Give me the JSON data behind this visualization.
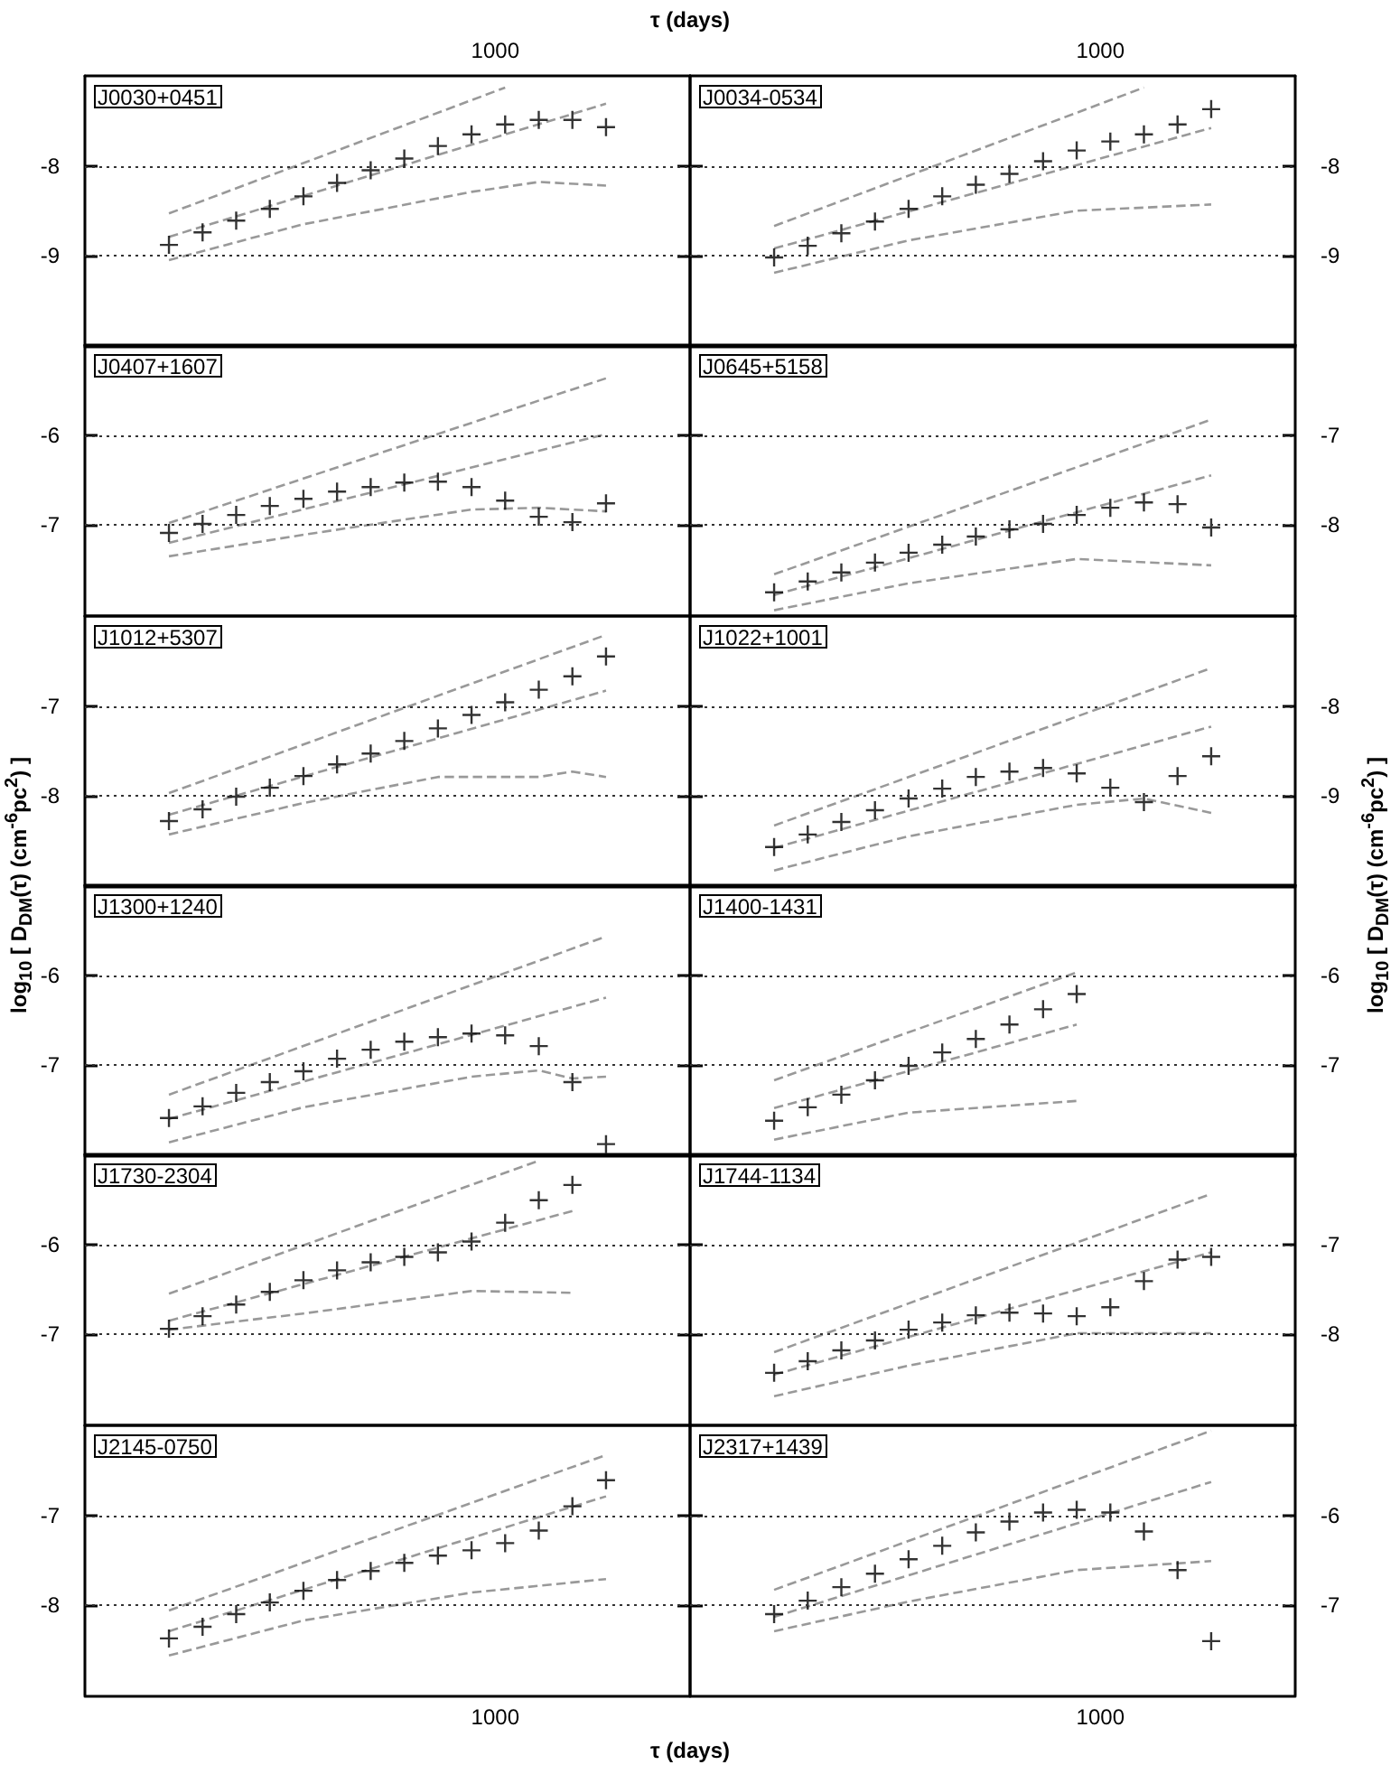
{
  "chart_data": [
    {
      "type": "scatter",
      "title": "J0030+0451",
      "x2label": "τ (days)",
      "ylabel": "log$_{10}$ [ D$_{DM}$(τ) (cm$^{-6}$pc$^{2}$) ]",
      "annotations": [
        "1000"
      ],
      "categories": [
        null,
        null,
        null,
        null,
        null,
        null,
        null,
        null,
        null,
        null,
        null,
        null,
        null,
        null,
        null,
        null,
        null,
        null
      ],
      "ylim": [
        -10,
        -7
      ],
      "yticks": [
        -9,
        -8
      ],
      "grid": "y",
      "tick_labels": "y",
      "series": [
        {
          "color": "#000000",
          "marker": "cross",
          "values": [
            null,
            null,
            -8.88,
            -8.74,
            -8.61,
            -8.48,
            -8.34,
            -8.19,
            -8.05,
            -7.92,
            -7.78,
            -7.65,
            -7.54,
            -7.49,
            -7.49,
            -7.57,
            null,
            null
          ]
        },
        {
          "type": "line",
          "color": "#999999",
          "line_style": "dashed",
          "marker": "none",
          "values": [
            null,
            null,
            -8.53,
            null,
            null,
            null,
            null,
            null,
            null,
            null,
            null,
            null,
            -7.13,
            null,
            null,
            null,
            null,
            null
          ]
        },
        {
          "type": "line",
          "color": "#999999",
          "line_style": "dashed",
          "marker": "none",
          "values": [
            null,
            null,
            -8.79,
            null,
            null,
            null,
            null,
            null,
            null,
            null,
            null,
            null,
            null,
            null,
            null,
            -7.31,
            null,
            null
          ]
        },
        {
          "type": "line",
          "color": "#999999",
          "line_style": "dashed",
          "marker": "none",
          "values": [
            null,
            null,
            -9.05,
            null,
            null,
            null,
            -8.65,
            null,
            null,
            null,
            null,
            -8.29,
            null,
            -8.18,
            null,
            -8.22,
            null,
            null
          ]
        }
      ]
    },
    {
      "type": "scatter",
      "title": "J0034-0534",
      "y2label": "log$_{10}$ [ D$_{DM}$(τ) (cm$^{-6}$pc$^{2}$) ]",
      "annotations": [
        "1000"
      ],
      "categories": [
        null,
        null,
        null,
        null,
        null,
        null,
        null,
        null,
        null,
        null,
        null,
        null,
        null,
        null,
        null,
        null,
        null,
        null
      ],
      "y2lim": [
        -10,
        -7
      ],
      "y2ticks": [
        -9,
        -8
      ],
      "grid": "y",
      "tick_labels": "y",
      "series": [
        {
          "axis": "y2",
          "color": "#000000",
          "marker": "cross",
          "values": [
            null,
            null,
            -9.02,
            -8.89,
            -8.75,
            -8.62,
            -8.48,
            -8.34,
            -8.21,
            -8.09,
            -7.95,
            -7.83,
            -7.73,
            -7.65,
            -7.54,
            -7.37,
            null,
            null
          ]
        },
        {
          "type": "line",
          "axis": "y2",
          "color": "#999999",
          "line_style": "dashed",
          "marker": "none",
          "values": [
            null,
            null,
            -8.67,
            null,
            null,
            null,
            null,
            null,
            null,
            null,
            null,
            null,
            null,
            -7.13,
            null,
            null,
            null,
            null
          ]
        },
        {
          "type": "line",
          "axis": "y2",
          "color": "#999999",
          "line_style": "dashed",
          "marker": "none",
          "values": [
            null,
            null,
            -8.92,
            null,
            null,
            null,
            null,
            null,
            null,
            null,
            null,
            null,
            null,
            null,
            null,
            -7.58,
            null,
            null
          ]
        },
        {
          "type": "line",
          "axis": "y2",
          "color": "#999999",
          "line_style": "dashed",
          "marker": "none",
          "values": [
            null,
            null,
            -9.19,
            null,
            null,
            null,
            -8.83,
            null,
            null,
            null,
            null,
            -8.5,
            null,
            null,
            null,
            -8.43,
            null,
            null
          ]
        }
      ]
    },
    {
      "type": "scatter",
      "title": "J0407+1607",
      "categories": [
        null,
        null,
        null,
        null,
        null,
        null,
        null,
        null,
        null,
        null,
        null,
        null,
        null,
        null,
        null,
        null,
        null,
        null
      ],
      "ylim": [
        -8,
        -5
      ],
      "yticks": [
        -7,
        -6
      ],
      "grid": "y",
      "tick_labels": "y",
      "series": [
        {
          "color": "#000000",
          "marker": "cross",
          "values": [
            null,
            null,
            -7.09,
            -6.99,
            -6.89,
            -6.79,
            -6.71,
            -6.63,
            -6.58,
            -6.53,
            -6.52,
            -6.58,
            -6.73,
            -6.91,
            -6.97,
            -6.76,
            null,
            null
          ]
        },
        {
          "type": "line",
          "color": "#999999",
          "line_style": "dashed",
          "marker": "none",
          "values": [
            null,
            null,
            -6.98,
            null,
            null,
            null,
            null,
            null,
            null,
            null,
            null,
            null,
            null,
            null,
            null,
            -5.37,
            null,
            null
          ]
        },
        {
          "type": "line",
          "color": "#999999",
          "line_style": "dashed",
          "marker": "none",
          "values": [
            null,
            null,
            -7.2,
            null,
            null,
            null,
            null,
            null,
            null,
            null,
            null,
            null,
            null,
            null,
            null,
            -5.99,
            null,
            null
          ]
        },
        {
          "type": "line",
          "color": "#999999",
          "line_style": "dashed",
          "marker": "none",
          "values": [
            null,
            null,
            -7.35,
            null,
            null,
            null,
            -7.11,
            null,
            null,
            null,
            null,
            -6.83,
            null,
            -6.81,
            null,
            -6.85,
            null,
            null
          ]
        }
      ]
    },
    {
      "type": "scatter",
      "title": "J0645+5158",
      "categories": [
        null,
        null,
        null,
        null,
        null,
        null,
        null,
        null,
        null,
        null,
        null,
        null,
        null,
        null,
        null,
        null,
        null,
        null
      ],
      "y2lim": [
        -9,
        -6
      ],
      "y2ticks": [
        -8,
        -7
      ],
      "grid": "y",
      "tick_labels": "y",
      "series": [
        {
          "axis": "y2",
          "color": "#000000",
          "marker": "cross",
          "values": [
            null,
            null,
            -8.75,
            -8.63,
            -8.53,
            -8.42,
            -8.31,
            -8.22,
            -8.13,
            -8.05,
            -7.99,
            -7.89,
            -7.81,
            -7.75,
            -7.77,
            -8.03,
            null,
            null
          ]
        },
        {
          "type": "line",
          "axis": "y2",
          "color": "#999999",
          "line_style": "dashed",
          "marker": "none",
          "values": [
            null,
            null,
            -8.55,
            null,
            null,
            null,
            null,
            null,
            null,
            null,
            null,
            null,
            null,
            null,
            null,
            -6.83,
            null,
            null
          ]
        },
        {
          "type": "line",
          "axis": "y2",
          "color": "#999999",
          "line_style": "dashed",
          "marker": "none",
          "values": [
            null,
            null,
            -8.78,
            null,
            null,
            null,
            null,
            null,
            null,
            null,
            null,
            null,
            null,
            null,
            null,
            -7.45,
            null,
            null
          ]
        },
        {
          "type": "line",
          "axis": "y2",
          "color": "#999999",
          "line_style": "dashed",
          "marker": "none",
          "values": [
            null,
            null,
            -8.95,
            null,
            null,
            null,
            -8.65,
            null,
            null,
            null,
            null,
            -8.38,
            null,
            null,
            null,
            -8.45,
            null,
            null
          ]
        }
      ]
    },
    {
      "type": "scatter",
      "title": "J1012+5307",
      "categories": [
        null,
        null,
        null,
        null,
        null,
        null,
        null,
        null,
        null,
        null,
        null,
        null,
        null,
        null,
        null,
        null,
        null,
        null
      ],
      "ylim": [
        -9,
        -6
      ],
      "yticks": [
        -8,
        -7
      ],
      "grid": "y",
      "tick_labels": "y",
      "series": [
        {
          "color": "#000000",
          "marker": "cross",
          "values": [
            null,
            null,
            -8.28,
            -8.15,
            -8.01,
            -7.91,
            -7.78,
            -7.65,
            -7.53,
            -7.39,
            -7.25,
            -7.1,
            -6.96,
            -6.82,
            -6.67,
            -6.45,
            null,
            null
          ]
        },
        {
          "type": "line",
          "color": "#999999",
          "line_style": "dashed",
          "marker": "none",
          "values": [
            null,
            null,
            -7.97,
            null,
            null,
            null,
            null,
            null,
            null,
            null,
            null,
            null,
            null,
            null,
            null,
            -6.21,
            null,
            null
          ]
        },
        {
          "type": "line",
          "color": "#999999",
          "line_style": "dashed",
          "marker": "none",
          "values": [
            null,
            null,
            -8.21,
            null,
            null,
            null,
            null,
            null,
            null,
            null,
            null,
            null,
            null,
            null,
            null,
            -6.83,
            null,
            null
          ]
        },
        {
          "type": "line",
          "color": "#999999",
          "line_style": "dashed",
          "marker": "none",
          "values": [
            null,
            null,
            -8.43,
            null,
            null,
            null,
            -8.08,
            null,
            null,
            null,
            -7.79,
            null,
            null,
            -7.79,
            -7.73,
            -7.79,
            null,
            null
          ]
        }
      ]
    },
    {
      "type": "scatter",
      "title": "J1022+1001",
      "categories": [
        null,
        null,
        null,
        null,
        null,
        null,
        null,
        null,
        null,
        null,
        null,
        null,
        null,
        null,
        null,
        null,
        null,
        null
      ],
      "y2lim": [
        -10,
        -7
      ],
      "y2ticks": [
        -9,
        -8
      ],
      "grid": "y",
      "tick_labels": "y",
      "series": [
        {
          "axis": "y2",
          "color": "#000000",
          "marker": "cross",
          "values": [
            null,
            null,
            -9.57,
            -9.43,
            -9.29,
            -9.16,
            -9.03,
            -8.92,
            -8.79,
            -8.73,
            -8.69,
            -8.75,
            -8.91,
            -9.07,
            -8.78,
            -8.56,
            null,
            null
          ]
        },
        {
          "type": "line",
          "axis": "y2",
          "color": "#999999",
          "line_style": "dashed",
          "marker": "none",
          "values": [
            null,
            null,
            -9.33,
            null,
            null,
            null,
            null,
            null,
            null,
            null,
            null,
            null,
            null,
            null,
            null,
            -7.58,
            null,
            null
          ]
        },
        {
          "type": "line",
          "axis": "y2",
          "color": "#999999",
          "line_style": "dashed",
          "marker": "none",
          "values": [
            null,
            null,
            -9.58,
            null,
            null,
            null,
            null,
            null,
            null,
            null,
            null,
            null,
            null,
            null,
            null,
            -8.23,
            null,
            null
          ]
        },
        {
          "type": "line",
          "axis": "y2",
          "color": "#999999",
          "line_style": "dashed",
          "marker": "none",
          "values": [
            null,
            null,
            -9.83,
            null,
            null,
            null,
            -9.45,
            null,
            null,
            null,
            null,
            -9.1,
            null,
            -9.03,
            null,
            -9.19,
            null,
            null
          ]
        }
      ]
    },
    {
      "type": "scatter",
      "title": "J1300+1240",
      "categories": [
        null,
        null,
        null,
        null,
        null,
        null,
        null,
        null,
        null,
        null,
        null,
        null,
        null,
        null,
        null,
        null,
        null,
        null
      ],
      "ylim": [
        -8,
        -5
      ],
      "yticks": [
        -7,
        -6
      ],
      "grid": "y",
      "tick_labels": "y",
      "series": [
        {
          "color": "#000000",
          "marker": "cross",
          "values": [
            null,
            null,
            -7.59,
            -7.46,
            -7.31,
            -7.19,
            -7.07,
            -6.93,
            -6.83,
            -6.74,
            -6.69,
            -6.65,
            -6.67,
            -6.79,
            -7.19,
            -7.88,
            null,
            null
          ]
        },
        {
          "type": "line",
          "color": "#999999",
          "line_style": "dashed",
          "marker": "none",
          "values": [
            null,
            null,
            -7.33,
            null,
            null,
            null,
            null,
            null,
            null,
            null,
            null,
            null,
            null,
            null,
            null,
            -5.57,
            null,
            null
          ]
        },
        {
          "type": "line",
          "color": "#999999",
          "line_style": "dashed",
          "marker": "none",
          "values": [
            null,
            null,
            -7.6,
            null,
            null,
            null,
            null,
            null,
            null,
            null,
            null,
            null,
            null,
            null,
            null,
            -6.25,
            null,
            null
          ]
        },
        {
          "type": "line",
          "color": "#999999",
          "line_style": "dashed",
          "marker": "none",
          "values": [
            null,
            null,
            -7.86,
            null,
            null,
            null,
            -7.47,
            null,
            null,
            null,
            null,
            -7.13,
            null,
            -7.06,
            -7.15,
            -7.13,
            null,
            null
          ]
        }
      ]
    },
    {
      "type": "scatter",
      "title": "J1400-1431",
      "categories": [
        null,
        null,
        null,
        null,
        null,
        null,
        null,
        null,
        null,
        null,
        null,
        null,
        null,
        null,
        null,
        null,
        null,
        null
      ],
      "y2lim": [
        -8,
        -5
      ],
      "y2ticks": [
        -7,
        -6
      ],
      "grid": "y",
      "tick_labels": "y",
      "series": [
        {
          "axis": "y2",
          "color": "#000000",
          "marker": "cross",
          "values": [
            null,
            null,
            -7.62,
            -7.47,
            -7.33,
            -7.17,
            -7.01,
            -6.86,
            -6.71,
            -6.55,
            -6.38,
            -6.21,
            null,
            null,
            null,
            null,
            null,
            null
          ]
        },
        {
          "type": "line",
          "axis": "y2",
          "color": "#999999",
          "line_style": "dashed",
          "marker": "none",
          "values": [
            null,
            null,
            -7.17,
            null,
            null,
            null,
            null,
            null,
            null,
            null,
            null,
            -5.97,
            null,
            null,
            null,
            null,
            null,
            null
          ]
        },
        {
          "type": "line",
          "axis": "y2",
          "color": "#999999",
          "line_style": "dashed",
          "marker": "none",
          "values": [
            null,
            null,
            -7.48,
            null,
            null,
            null,
            null,
            null,
            null,
            null,
            null,
            -6.55,
            null,
            null,
            null,
            null,
            null,
            null
          ]
        },
        {
          "type": "line",
          "axis": "y2",
          "color": "#999999",
          "line_style": "dashed",
          "marker": "none",
          "values": [
            null,
            null,
            -7.83,
            null,
            null,
            null,
            -7.53,
            null,
            null,
            null,
            null,
            -7.4,
            null,
            null,
            null,
            null,
            null,
            null
          ]
        }
      ]
    },
    {
      "type": "scatter",
      "title": "J1730-2304",
      "categories": [
        null,
        null,
        null,
        null,
        null,
        null,
        null,
        null,
        null,
        null,
        null,
        null,
        null,
        null,
        null,
        null,
        null,
        null
      ],
      "ylim": [
        -8,
        -5
      ],
      "yticks": [
        -7,
        -6
      ],
      "grid": "y",
      "tick_labels": "y",
      "series": [
        {
          "color": "#000000",
          "marker": "cross",
          "values": [
            null,
            null,
            -6.94,
            -6.8,
            -6.67,
            -6.53,
            -6.4,
            -6.29,
            -6.2,
            -6.14,
            -6.09,
            -5.97,
            -5.76,
            -5.51,
            -5.34,
            null,
            null,
            null
          ]
        },
        {
          "type": "line",
          "color": "#999999",
          "line_style": "dashed",
          "marker": "none",
          "values": [
            null,
            null,
            -6.55,
            null,
            null,
            null,
            null,
            null,
            null,
            null,
            null,
            null,
            null,
            -5.07,
            null,
            null,
            null,
            null
          ]
        },
        {
          "type": "line",
          "color": "#999999",
          "line_style": "dashed",
          "marker": "none",
          "values": [
            null,
            null,
            -6.85,
            null,
            null,
            null,
            null,
            null,
            null,
            null,
            null,
            null,
            null,
            null,
            -5.63,
            null,
            null,
            null
          ]
        },
        {
          "type": "line",
          "color": "#999999",
          "line_style": "dashed",
          "marker": "none",
          "values": [
            null,
            null,
            -6.95,
            null,
            null,
            null,
            -6.77,
            null,
            null,
            null,
            -6.57,
            -6.52,
            null,
            null,
            -6.54,
            null,
            null,
            null
          ]
        }
      ]
    },
    {
      "type": "scatter",
      "title": "J1744-1134",
      "categories": [
        null,
        null,
        null,
        null,
        null,
        null,
        null,
        null,
        null,
        null,
        null,
        null,
        null,
        null,
        null,
        null,
        null,
        null
      ],
      "y2lim": [
        -9,
        -6
      ],
      "y2ticks": [
        -8,
        -7
      ],
      "grid": "y",
      "tick_labels": "y",
      "series": [
        {
          "axis": "y2",
          "color": "#000000",
          "marker": "cross",
          "values": [
            null,
            null,
            -8.43,
            -8.3,
            -8.18,
            -8.07,
            -7.95,
            -7.87,
            -7.79,
            -7.76,
            -7.77,
            -7.8,
            -7.7,
            -7.41,
            -7.17,
            -7.14,
            null,
            null
          ]
        },
        {
          "type": "line",
          "axis": "y2",
          "color": "#999999",
          "line_style": "dashed",
          "marker": "none",
          "values": [
            null,
            null,
            -8.2,
            null,
            null,
            null,
            null,
            null,
            null,
            null,
            null,
            null,
            null,
            null,
            null,
            -6.44,
            null,
            null
          ]
        },
        {
          "type": "line",
          "axis": "y2",
          "color": "#999999",
          "line_style": "dashed",
          "marker": "none",
          "values": [
            null,
            null,
            -8.45,
            null,
            null,
            null,
            null,
            null,
            null,
            null,
            null,
            null,
            null,
            null,
            null,
            -7.09,
            null,
            null
          ]
        },
        {
          "type": "line",
          "axis": "y2",
          "color": "#999999",
          "line_style": "dashed",
          "marker": "none",
          "values": [
            null,
            null,
            -8.69,
            null,
            null,
            null,
            -8.35,
            null,
            null,
            null,
            null,
            -7.99,
            null,
            null,
            null,
            -7.99,
            null,
            null
          ]
        }
      ]
    },
    {
      "type": "scatter",
      "title": "J2145-0750",
      "xlabel": "τ (days)",
      "annotations": [
        "1000"
      ],
      "categories": [
        null,
        null,
        null,
        null,
        null,
        null,
        null,
        null,
        null,
        null,
        null,
        null,
        null,
        null,
        null,
        null,
        null,
        null
      ],
      "ylim": [
        -9,
        -6
      ],
      "yticks": [
        -8,
        -7
      ],
      "grid": "y",
      "tick_labels": "y",
      "series": [
        {
          "color": "#000000",
          "marker": "cross",
          "values": [
            null,
            null,
            -8.37,
            -8.24,
            -8.1,
            -7.97,
            -7.84,
            -7.72,
            -7.62,
            -7.53,
            -7.45,
            -7.39,
            -7.31,
            -7.17,
            -6.9,
            -6.61,
            null,
            null
          ]
        },
        {
          "type": "line",
          "color": "#999999",
          "line_style": "dashed",
          "marker": "none",
          "values": [
            null,
            null,
            -8.06,
            null,
            null,
            null,
            null,
            null,
            null,
            null,
            null,
            null,
            null,
            null,
            null,
            -6.33,
            null,
            null
          ]
        },
        {
          "type": "line",
          "color": "#999999",
          "line_style": "dashed",
          "marker": "none",
          "values": [
            null,
            null,
            -8.29,
            null,
            null,
            null,
            null,
            null,
            null,
            null,
            null,
            null,
            null,
            null,
            null,
            -6.79,
            null,
            null
          ]
        },
        {
          "type": "line",
          "color": "#999999",
          "line_style": "dashed",
          "marker": "none",
          "values": [
            null,
            null,
            -8.56,
            null,
            null,
            null,
            -8.17,
            null,
            null,
            null,
            null,
            -7.86,
            null,
            null,
            null,
            -7.71,
            null,
            null
          ]
        }
      ]
    },
    {
      "type": "scatter",
      "title": "J2317+1439",
      "annotations": [
        "1000"
      ],
      "categories": [
        null,
        null,
        null,
        null,
        null,
        null,
        null,
        null,
        null,
        null,
        null,
        null,
        null,
        null,
        null,
        null,
        null,
        null
      ],
      "y2lim": [
        -8,
        -5
      ],
      "y2ticks": [
        -7,
        -6
      ],
      "grid": "y",
      "tick_labels": "y",
      "series": [
        {
          "axis": "y2",
          "color": "#000000",
          "marker": "cross",
          "values": [
            null,
            null,
            -7.1,
            -6.95,
            -6.8,
            -6.65,
            -6.49,
            -6.34,
            -6.19,
            -6.07,
            -5.97,
            -5.94,
            -5.97,
            -6.18,
            -6.61,
            -7.4,
            null,
            null
          ]
        },
        {
          "type": "line",
          "axis": "y2",
          "color": "#999999",
          "line_style": "dashed",
          "marker": "none",
          "values": [
            null,
            null,
            -6.83,
            null,
            null,
            null,
            null,
            null,
            null,
            null,
            null,
            null,
            null,
            null,
            null,
            -5.06,
            null,
            null
          ]
        },
        {
          "type": "line",
          "axis": "y2",
          "color": "#999999",
          "line_style": "dashed",
          "marker": "none",
          "values": [
            null,
            null,
            -7.13,
            null,
            null,
            null,
            null,
            null,
            null,
            null,
            null,
            null,
            null,
            null,
            null,
            -5.63,
            null,
            null
          ]
        },
        {
          "type": "line",
          "axis": "y2",
          "color": "#999999",
          "line_style": "dashed",
          "marker": "none",
          "values": [
            null,
            null,
            -7.29,
            null,
            null,
            null,
            -6.96,
            null,
            null,
            null,
            null,
            -6.61,
            null,
            null,
            null,
            -6.51,
            null,
            null
          ]
        }
      ]
    }
  ]
}
